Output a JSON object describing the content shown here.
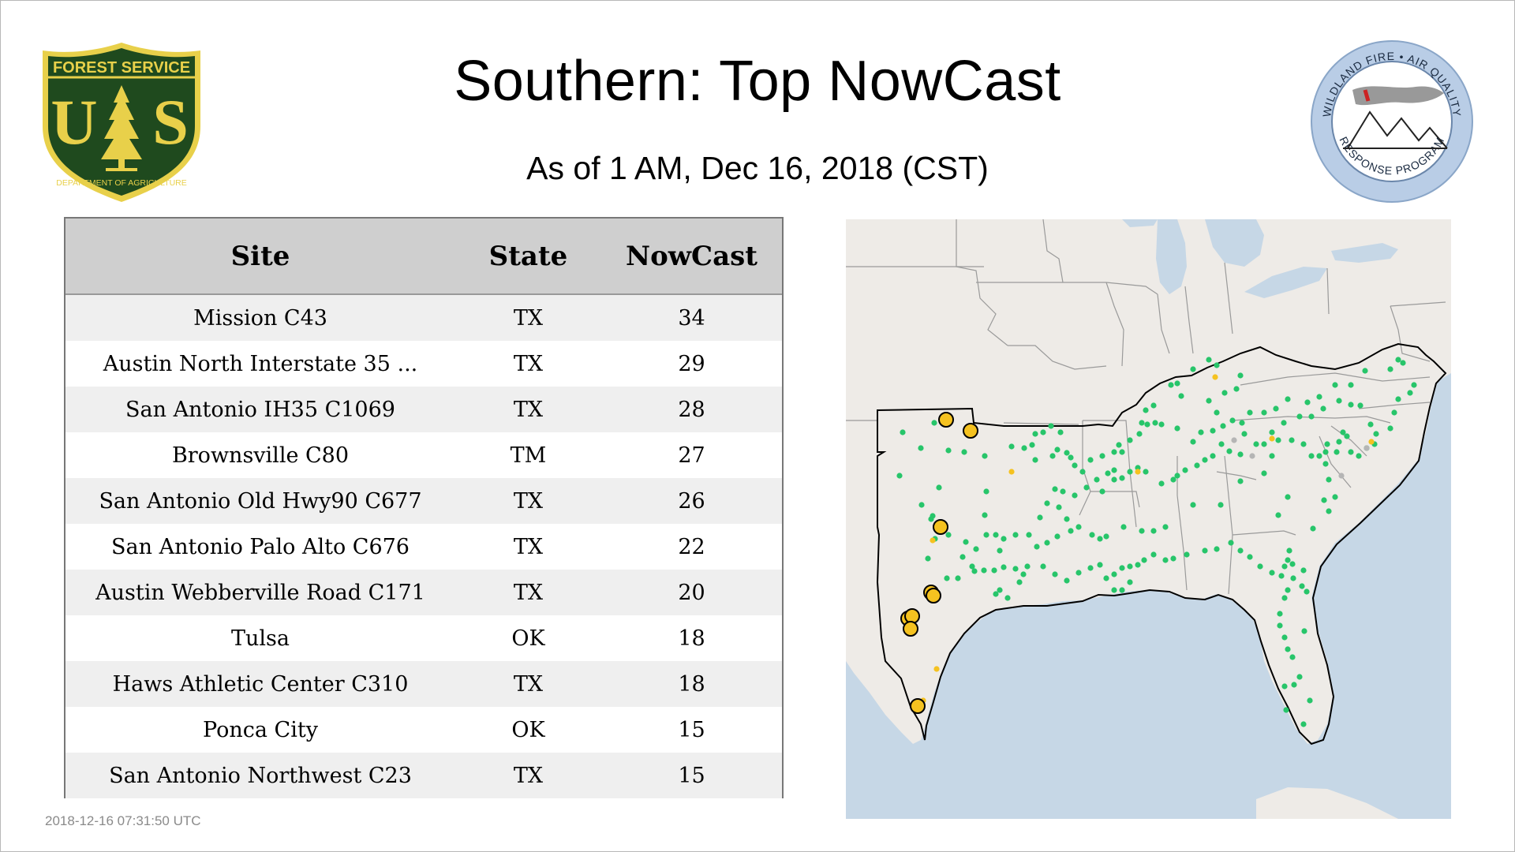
{
  "header": {
    "title": "Southern: Top NowCast",
    "subtitle": "As of  1 AM, Dec 16, 2018 (CST)"
  },
  "logos": {
    "forest_service": {
      "top_text": "FOREST SERVICE",
      "letters_left": "U",
      "letters_right": "S",
      "bottom_text": "DEPARTMENT OF AGRICULTURE",
      "colors": {
        "green": "#1f4a1e",
        "gold": "#e8d04a"
      }
    },
    "wildland": {
      "top_text": "WILDLAND FIRE • AIR QUALITY",
      "bottom_text": "RESPONSE PROGRAM",
      "colors": {
        "ring": "#b9cde6",
        "smoke": "#999999",
        "flag": "#cc2222"
      }
    }
  },
  "table": {
    "headers": {
      "site": "Site",
      "state": "State",
      "nowcast": "NowCast"
    },
    "rows": [
      {
        "site": "Mission C43",
        "state": "TX",
        "nowcast": "34"
      },
      {
        "site": "Austin North Interstate 35 ...",
        "state": "TX",
        "nowcast": "29"
      },
      {
        "site": "San Antonio IH35 C1069",
        "state": "TX",
        "nowcast": "28"
      },
      {
        "site": "Brownsville C80",
        "state": "TM",
        "nowcast": "27"
      },
      {
        "site": "San Antonio Old Hwy90 C677",
        "state": "TX",
        "nowcast": "26"
      },
      {
        "site": "San Antonio Palo Alto C676",
        "state": "TX",
        "nowcast": "22"
      },
      {
        "site": "Austin Webberville Road C171",
        "state": "TX",
        "nowcast": "20"
      },
      {
        "site": "Tulsa",
        "state": "OK",
        "nowcast": "18"
      },
      {
        "site": "Haws Athletic Center C310",
        "state": "TX",
        "nowcast": "18"
      },
      {
        "site": "Ponca City",
        "state": "OK",
        "nowcast": "15"
      },
      {
        "site": "San Antonio Northwest C23",
        "state": "TX",
        "nowcast": "15"
      }
    ]
  },
  "map": {
    "colors": {
      "land": "#eeebe7",
      "water": "#c6d7e6",
      "border": "#9a9a9a",
      "region": "#000000",
      "good": "#27c56a",
      "moderate": "#f5c220",
      "no_data": "#b5b5b5"
    },
    "legend_meaning": {
      "good": "green",
      "moderate": "yellow"
    }
  },
  "footer": {
    "timestamp": "2018-12-16 07:31:50 UTC"
  }
}
